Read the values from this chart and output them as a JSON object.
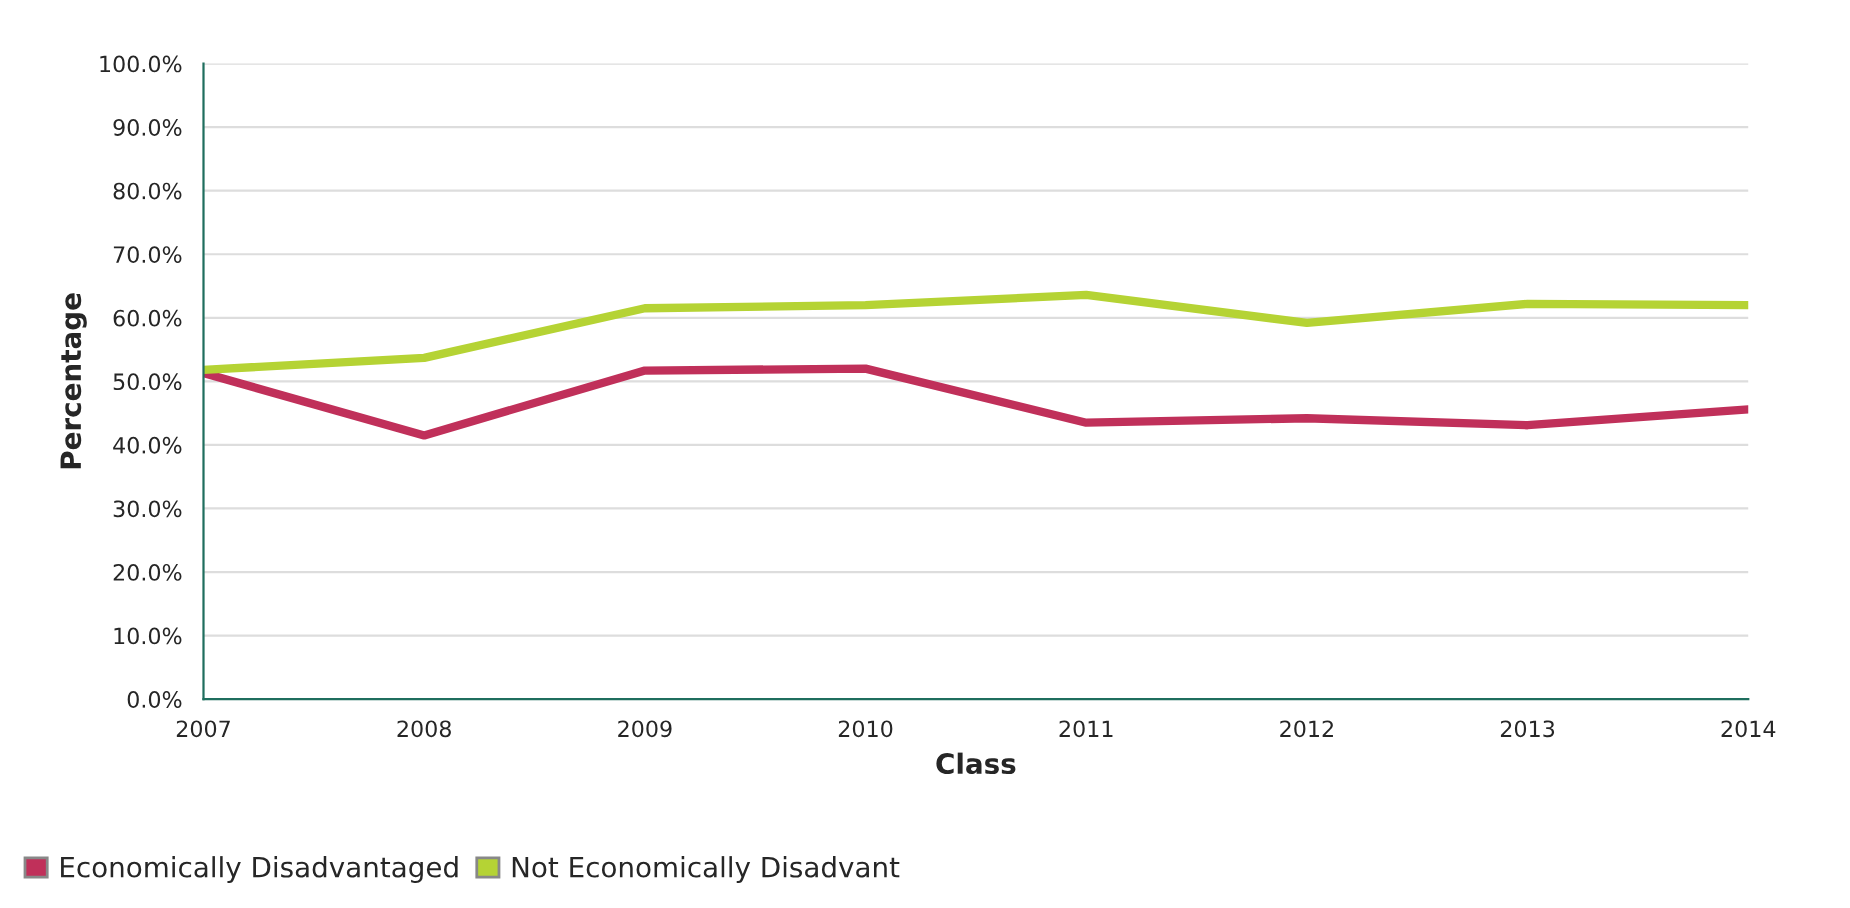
{
  "chart_data": {
    "type": "line",
    "xlabel": "Class",
    "ylabel": "Percentage",
    "categories": [
      "2007",
      "2008",
      "2009",
      "2010",
      "2011",
      "2012",
      "2013",
      "2014"
    ],
    "series": [
      {
        "name": "Economically Disadvantaged",
        "color": "#c0305a",
        "values": [
          51.3,
          41.5,
          51.7,
          52.0,
          43.5,
          44.2,
          43.1,
          45.6
        ]
      },
      {
        "name": "Not Economically Disadvant",
        "color": "#b5d334",
        "values": [
          51.8,
          53.7,
          61.5,
          62.0,
          63.6,
          59.2,
          62.2,
          62.0
        ]
      }
    ],
    "ylim": [
      0,
      100
    ],
    "yticks": [
      {
        "value": 0,
        "label": "0.0%"
      },
      {
        "value": 10,
        "label": "10.0%"
      },
      {
        "value": 20,
        "label": "20.0%"
      },
      {
        "value": 30,
        "label": "30.0%"
      },
      {
        "value": 40,
        "label": "40.0%"
      },
      {
        "value": 50,
        "label": "50.0%"
      },
      {
        "value": 60,
        "label": "60.0%"
      },
      {
        "value": 70,
        "label": "70.0%"
      },
      {
        "value": 80,
        "label": "80.0%"
      },
      {
        "value": 90,
        "label": "90.0%"
      },
      {
        "value": 100,
        "label": "100.0%"
      }
    ],
    "grid": "y",
    "legend": "bottom left",
    "marker": "none",
    "line_style": "solid"
  }
}
